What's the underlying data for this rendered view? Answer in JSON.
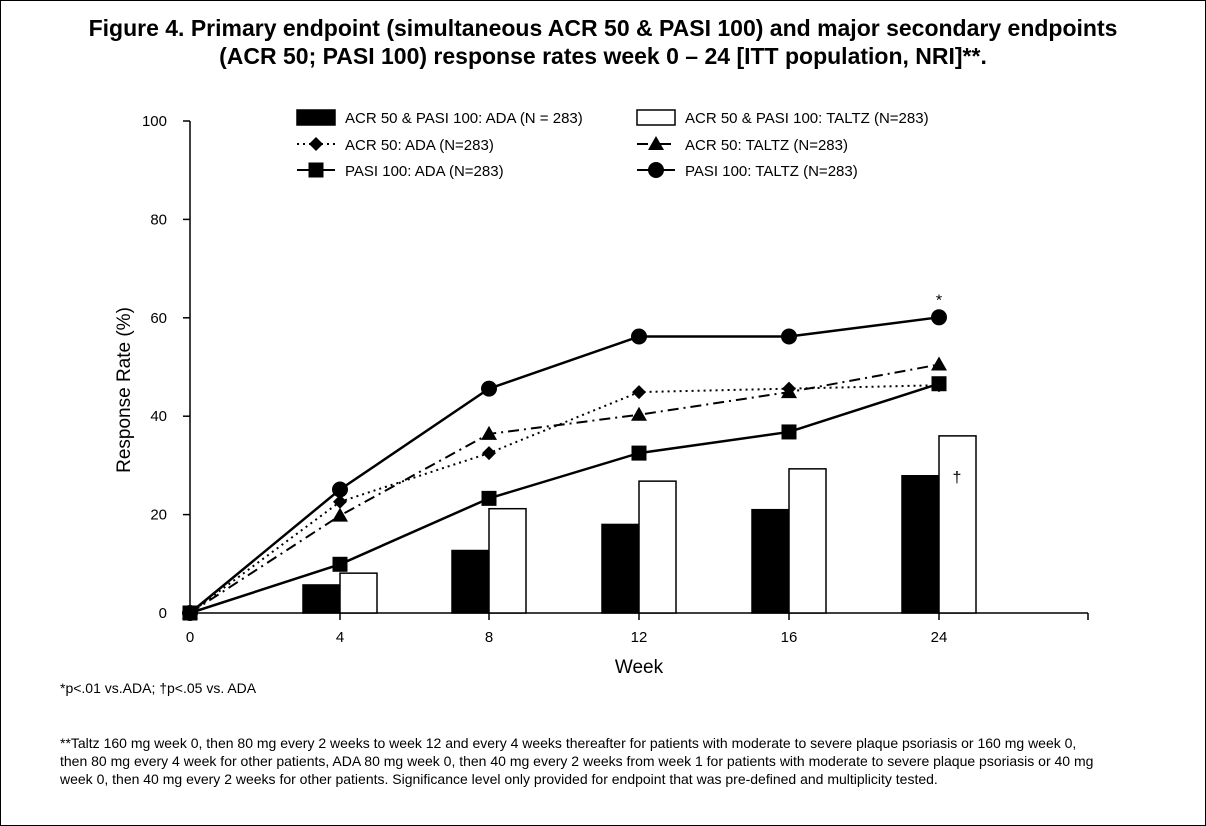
{
  "title": {
    "line1": "Figure 4. Primary endpoint (simultaneous ACR 50 & PASI 100) and major secondary endpoints",
    "line2": "(ACR 50; PASI 100) response rates week 0 – 24 [ITT population, NRI]**."
  },
  "chart_data": {
    "type": "bar",
    "xlabel": "Week",
    "ylabel": "Response Rate (%)",
    "ylim": [
      0,
      100
    ],
    "yticks": [
      0,
      20,
      40,
      60,
      80,
      100
    ],
    "xticks": [
      "0",
      "4",
      "8",
      "12",
      "16",
      "24"
    ],
    "grid": false,
    "legend_position": "top",
    "bar_series": [
      {
        "name": "ACR 50 & PASI 100: ADA (N = 283)",
        "color": "#000000",
        "fill": "solid",
        "categories": [
          "4",
          "8",
          "12",
          "16",
          "24"
        ],
        "values": [
          5.7,
          12.7,
          18.0,
          21.0,
          27.9
        ]
      },
      {
        "name": "ACR 50 & PASI 100: TALTZ (N=283)",
        "color": "#ffffff",
        "fill": "hollow",
        "categories": [
          "4",
          "8",
          "12",
          "16",
          "24"
        ],
        "values": [
          8.1,
          21.2,
          26.8,
          29.3,
          36.0
        ]
      }
    ],
    "line_series": [
      {
        "name": "ACR 50: ADA (N=283)",
        "linestyle": "dotted",
        "marker": "diamond",
        "x": [
          "0",
          "4",
          "8",
          "12",
          "16",
          "24"
        ],
        "values": [
          0,
          22.6,
          32.5,
          44.9,
          45.6,
          46.3
        ]
      },
      {
        "name": "ACR 50: TALTZ (N=283)",
        "linestyle": "dashdot",
        "marker": "triangle",
        "x": [
          "0",
          "4",
          "8",
          "12",
          "16",
          "24"
        ],
        "values": [
          0,
          19.8,
          36.4,
          40.3,
          44.9,
          50.5
        ]
      },
      {
        "name": "PASI 100: ADA (N=283)",
        "linestyle": "solid",
        "marker": "square",
        "x": [
          "0",
          "4",
          "8",
          "12",
          "16",
          "24"
        ],
        "values": [
          0,
          9.9,
          23.3,
          32.5,
          36.8,
          46.6
        ]
      },
      {
        "name": "PASI 100: TALTZ (N=283)",
        "linestyle": "solid",
        "marker": "circle",
        "x": [
          "0",
          "4",
          "8",
          "12",
          "16",
          "24"
        ],
        "values": [
          0,
          25.1,
          45.6,
          56.2,
          56.2,
          60.1
        ]
      }
    ],
    "annotations": [
      {
        "text": "*",
        "x": "24",
        "y": 63.5
      },
      {
        "text": "†",
        "x": "24",
        "y": 27.5
      }
    ]
  },
  "footnotes": {
    "significance": "*p<.01 vs.ADA; †p<.05 vs. ADA",
    "dosing": "**Taltz 160 mg week 0, then 80 mg every 2 weeks to week 12 and every 4 weeks thereafter for patients with moderate to severe plaque psoriasis or 160 mg week 0, then 80 mg every 4 week for other patients, ADA 80 mg week 0, then 40 mg every 2 weeks from week 1 for patients with moderate to severe plaque psoriasis or 40 mg week 0, then 40 mg every 2 weeks for other patients. Significance level only provided for endpoint that was pre-defined and multiplicity tested."
  }
}
